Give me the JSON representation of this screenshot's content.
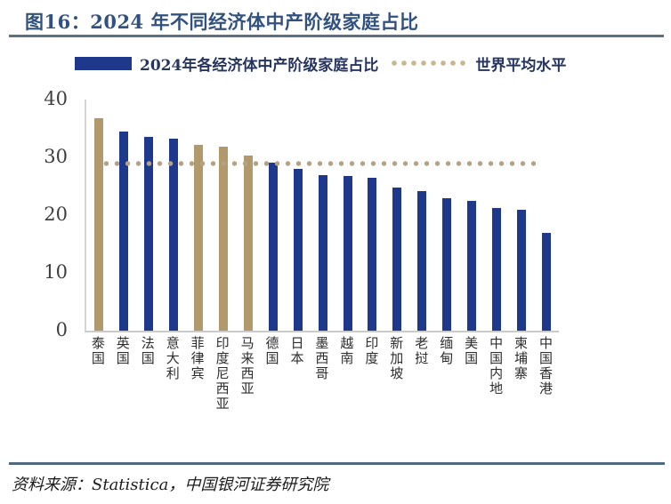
{
  "header": {
    "title": "图16：2024 年不同经济体中产阶级家庭占比"
  },
  "legend": {
    "bar_series_label": "2024年各经济体中产阶级家庭占比",
    "avg_line_label": "世界平均水平"
  },
  "chart_data": {
    "type": "bar",
    "title": "2024年不同经济体中产阶级家庭占比",
    "categories": [
      "泰国",
      "英国",
      "法国",
      "意大利",
      "菲律宾",
      "印度尼西亚",
      "马来西亚",
      "德国",
      "日本",
      "墨西哥",
      "越南",
      "印度",
      "新加坡",
      "老挝",
      "缅甸",
      "美国",
      "中国内地",
      "柬埔寨",
      "中国香港"
    ],
    "values": [
      36.8,
      34.4,
      33.5,
      33.2,
      32.2,
      31.9,
      30.3,
      29.1,
      28.0,
      26.9,
      26.7,
      26.5,
      24.8,
      24.2,
      23.0,
      22.4,
      21.2,
      20.9,
      16.9
    ],
    "world_average": 29,
    "ylim": [
      0,
      40
    ],
    "yticks": [
      40,
      30,
      20,
      10,
      0
    ],
    "bar_colors": [
      "tan",
      "navy",
      "navy",
      "navy",
      "tan",
      "tan",
      "tan",
      "navy",
      "navy",
      "navy",
      "navy",
      "navy",
      "navy",
      "navy",
      "navy",
      "navy",
      "navy",
      "navy",
      "navy"
    ],
    "colors": {
      "navy": "#1e388c",
      "tan": "#b2996b",
      "avg_dots": "#b5a284",
      "title": "#31517e"
    },
    "grid": false,
    "legend_position": "top",
    "xlabel": "",
    "ylabel": ""
  },
  "footer": {
    "source": "资料来源：Statistica，中国银河证券研究院"
  }
}
